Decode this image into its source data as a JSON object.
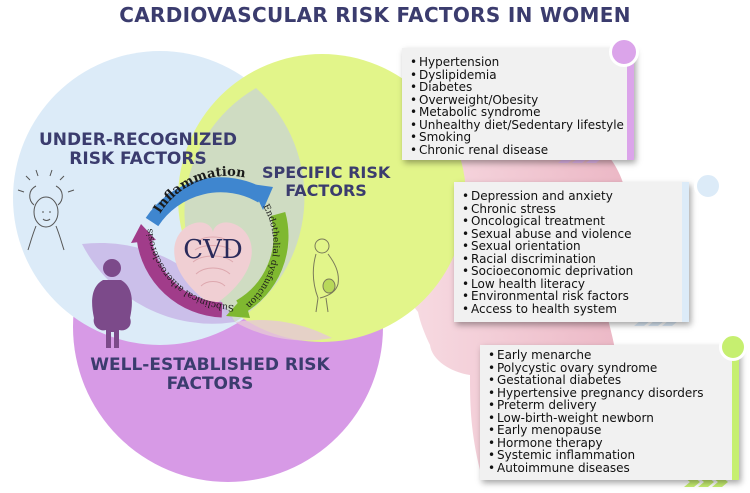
{
  "title": "CARDIOVASCULAR RISK FACTORS IN WOMEN",
  "circles": {
    "under_recognized": "UNDER-RECOGNIZED\nRISK FACTORS",
    "specific": "SPECIFIC RISK\nFACTORS",
    "well_established": "WELL-ESTABLISHED RISK\nFACTORS"
  },
  "center": {
    "label": "CVD",
    "cycle": [
      "Inflammation",
      "Endothelial dysfunction",
      "Subclinical atherosclerosis"
    ]
  },
  "colors": {
    "title": "#3b3c6e",
    "under_recognized": "#dcebf8",
    "specific": "#e2f58a",
    "well_established": "#d79ae6",
    "arrow_blue": "#3f86cf",
    "arrow_green": "#7fb830",
    "arrow_purple": "#a13c8a",
    "heart": "#f0cfd3"
  },
  "cards": [
    {
      "accent": "#dba4ea",
      "items": [
        "Hypertension",
        "Dyslipidemia",
        "Diabetes",
        "Overweight/Obesity",
        "Metabolic syndrome",
        "Unhealthy diet/Sedentary lifestyle",
        "Smoking",
        "Chronic renal disease"
      ]
    },
    {
      "accent": "#dcebf8",
      "items": [
        "Depression and anxiety",
        "Chronic stress",
        "Oncological treatment",
        "Sexual abuse and violence",
        "Sexual orientation",
        "Racial discrimination",
        "Socioeconomic deprivation",
        "Low health literacy",
        "Environmental risk factors",
        "Access to health system"
      ]
    },
    {
      "accent": "#c6ef70",
      "items": [
        "Early menarche",
        "Polycystic ovary syndrome",
        "Gestational diabetes",
        "Hypertensive pregnancy disorders",
        "Preterm delivery",
        "Low-birth-weight newborn",
        "Early menopause",
        "Hormone therapy",
        "Systemic inflammation",
        "Autoimmune diseases"
      ]
    }
  ],
  "icons": [
    "stressed-woman-icon",
    "pregnant-woman-icon",
    "obese-woman-icon",
    "woman-profile-silhouette"
  ]
}
